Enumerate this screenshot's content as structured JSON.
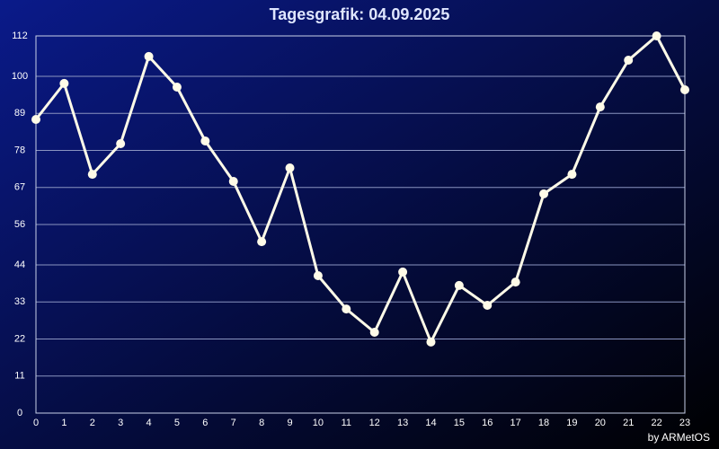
{
  "chart_data": {
    "type": "line",
    "title": "Tagesgrafik: 04.09.2025",
    "credit": "by ARMetOS",
    "x": [
      0,
      1,
      2,
      3,
      4,
      5,
      6,
      7,
      8,
      9,
      10,
      11,
      12,
      13,
      14,
      15,
      16,
      17,
      18,
      19,
      20,
      21,
      22,
      23
    ],
    "series": [
      {
        "color": "#fffbe8",
        "values": [
          87.2,
          97.9,
          70.9,
          80,
          105.9,
          96.8,
          80.8,
          68.8,
          50.9,
          72.8,
          40.8,
          30.9,
          24,
          41.9,
          21.1,
          37.9,
          32,
          38.9,
          65.1,
          70.9,
          90.9,
          104.8,
          112,
          96
        ]
      }
    ],
    "xlim": [
      0,
      23
    ],
    "xticks": [
      0,
      1,
      2,
      3,
      4,
      5,
      6,
      7,
      8,
      9,
      10,
      11,
      12,
      13,
      14,
      15,
      16,
      17,
      18,
      19,
      20,
      21,
      22,
      23
    ],
    "ylim": [
      0,
      112
    ],
    "yticks": [
      0,
      11,
      22,
      33,
      44,
      56,
      67,
      78,
      89,
      100,
      112
    ],
    "grid": true
  }
}
